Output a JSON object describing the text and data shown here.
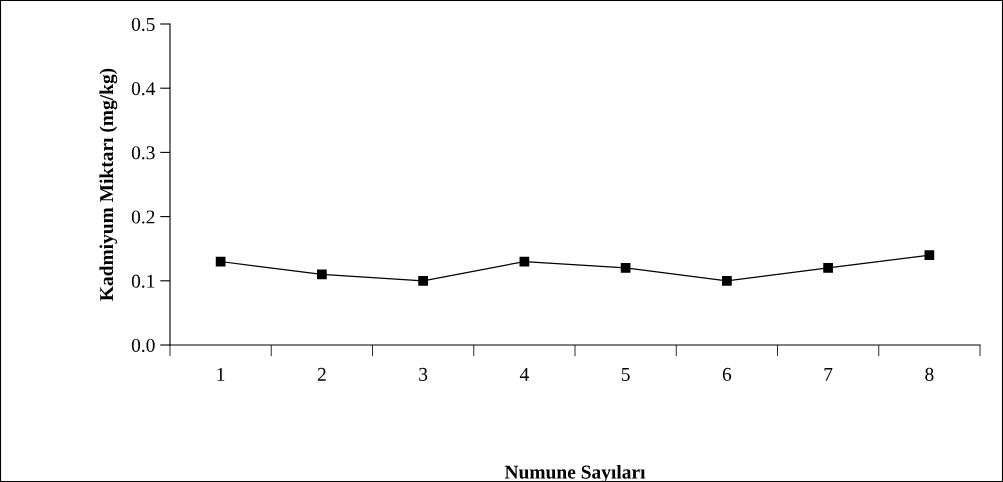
{
  "chart_data": {
    "type": "line",
    "xlabel": "Numune Sayıları",
    "ylabel": "Kadmiyum Miktarı (mg/kg)",
    "categories": [
      "1",
      "2",
      "3",
      "4",
      "5",
      "6",
      "7",
      "8"
    ],
    "series": [
      {
        "color": "#000000",
        "values": [
          0.13,
          0.11,
          0.1,
          0.13,
          0.12,
          0.1,
          0.12,
          0.14
        ]
      }
    ],
    "ylim": [
      0,
      0.5
    ],
    "yticks": [
      {
        "value": 0,
        "label": "0.0"
      },
      0.1,
      0.2,
      0.3,
      0.4,
      0.5
    ],
    "grid": false,
    "legend": false,
    "marker": "square",
    "line_style": "solid"
  }
}
